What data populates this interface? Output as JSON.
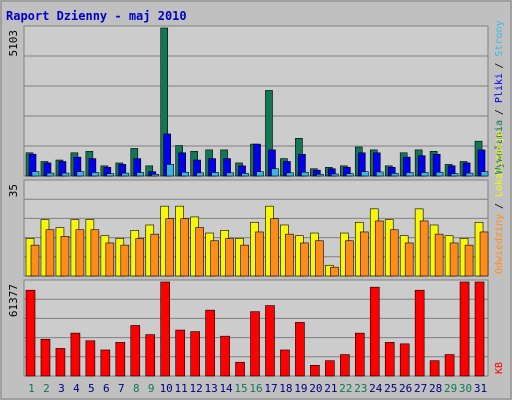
{
  "title": "Raport Dzienny -  maj 2010",
  "colors": {
    "background": "#c0c0c0",
    "plot_background": "#cccccc",
    "frame": "#808080",
    "title_text": "#0000cc",
    "visits_bar": "#117755",
    "pages_bar": "#0000ee",
    "files_bar": "#3bb5e8",
    "sites_bar": "#f7f70a",
    "hits_bar": "#ff8c1a",
    "kbytes_bar": "#ff0000",
    "weekend_day_label": "#117755",
    "weekday_label": "#000080"
  },
  "chart_data": [
    {
      "type": "bar",
      "panel": "top",
      "ymax_label": "5103",
      "legend_labels": [
        "Wywołania",
        "Pliki",
        "Strony"
      ],
      "x": [
        "1",
        "2",
        "3",
        "4",
        "5",
        "6",
        "7",
        "8",
        "9",
        "10",
        "11",
        "12",
        "13",
        "14",
        "15",
        "16",
        "17",
        "18",
        "19",
        "20",
        "21",
        "22",
        "23",
        "24",
        "25",
        "26",
        "27",
        "28",
        "29",
        "30",
        "31"
      ],
      "ylim": [
        0,
        5103
      ],
      "series": [
        {
          "name": "Wywołania",
          "values": [
            800,
            500,
            550,
            800,
            850,
            350,
            450,
            950,
            350,
            5103,
            1050,
            850,
            900,
            900,
            450,
            1100,
            2950,
            600,
            1300,
            250,
            300,
            350,
            1000,
            900,
            350,
            800,
            900,
            850,
            400,
            500,
            1200
          ]
        },
        {
          "name": "Pliki",
          "values": [
            750,
            450,
            500,
            650,
            600,
            300,
            400,
            600,
            150,
            1450,
            800,
            550,
            600,
            600,
            350,
            1100,
            900,
            500,
            750,
            200,
            250,
            300,
            800,
            800,
            300,
            650,
            700,
            750,
            350,
            450,
            900
          ]
        },
        {
          "name": "Strony",
          "values": [
            150,
            100,
            100,
            150,
            120,
            80,
            100,
            120,
            60,
            400,
            130,
            110,
            120,
            110,
            90,
            150,
            250,
            110,
            130,
            60,
            70,
            80,
            150,
            140,
            90,
            120,
            120,
            130,
            80,
            100,
            150
          ]
        }
      ]
    },
    {
      "type": "bar",
      "panel": "middle",
      "ymax_label": "35",
      "legend_labels": [
        "Odwiedziny",
        "Lokalizacje"
      ],
      "x": [
        "1",
        "2",
        "3",
        "4",
        "5",
        "6",
        "7",
        "8",
        "9",
        "10",
        "11",
        "12",
        "13",
        "14",
        "15",
        "16",
        "17",
        "18",
        "19",
        "20",
        "21",
        "22",
        "23",
        "24",
        "25",
        "26",
        "27",
        "28",
        "29",
        "30",
        "31"
      ],
      "ylim": [
        0,
        35
      ],
      "series": [
        {
          "name": "Odwiedziny",
          "values": [
            14,
            21,
            18,
            21,
            21,
            15,
            14,
            17,
            19,
            26,
            26,
            22,
            16,
            17,
            14,
            20,
            26,
            19,
            15,
            16,
            4,
            16,
            20,
            25,
            21,
            15,
            25,
            19,
            15,
            14,
            20
          ]
        },
        {
          "name": "Lokalizacje",
          "values": [
            14,
            21,
            18,
            21,
            21,
            15,
            14,
            17,
            19,
            26,
            26,
            22,
            16,
            17,
            14,
            20,
            26,
            19,
            15,
            16,
            4,
            16,
            20,
            25,
            21,
            15,
            25,
            19,
            15,
            14,
            20
          ]
        }
      ]
    },
    {
      "type": "bar",
      "panel": "bottom",
      "ymax_label": "61377",
      "legend_labels": [
        "KB"
      ],
      "x": [
        "1",
        "2",
        "3",
        "4",
        "5",
        "6",
        "7",
        "8",
        "9",
        "10",
        "11",
        "12",
        "13",
        "14",
        "15",
        "16",
        "17",
        "18",
        "19",
        "20",
        "21",
        "22",
        "23",
        "24",
        "25",
        "26",
        "27",
        "28",
        "29",
        "30",
        "31"
      ],
      "ylim": [
        0,
        61377
      ],
      "series": [
        {
          "name": "KB",
          "values": [
            56000,
            24000,
            18000,
            28000,
            23000,
            17000,
            22000,
            33000,
            27000,
            61377,
            30000,
            29000,
            43000,
            26000,
            9000,
            42000,
            46000,
            17000,
            35000,
            7000,
            10000,
            14000,
            28000,
            58000,
            22000,
            21000,
            56000,
            10000,
            14000,
            61377,
            61377
          ]
        }
      ]
    }
  ]
}
